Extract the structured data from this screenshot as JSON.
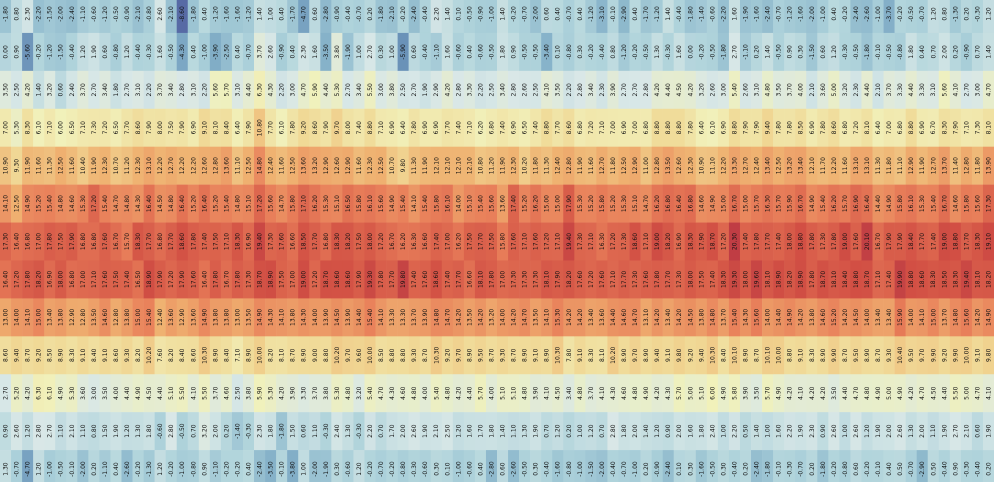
{
  "chart_data": {
    "type": "heatmap",
    "title": "",
    "xlabel": "",
    "ylabel": "",
    "orientation": "columns are series, rows are month-like bands (values printed vertically in each cell)",
    "colormap": "RdYlBu_r",
    "vmin": -10,
    "vmax": 22,
    "row_profile": [
      -1.0,
      0.5,
      3.0,
      7.5,
      12.0,
      15.5,
      17.5,
      17.0,
      13.5,
      9.0,
      4.5,
      0.5,
      -1.5
    ],
    "columns": [
      [
        -1.8,
        0.0,
        3.5,
        7.0,
        10.9,
        14.1,
        17.3,
        16.4,
        13.0,
        8.6,
        2.7,
        0.9,
        1.3
      ],
      [
        0.8,
        0.9,
        2.5,
        5.3,
        9.3,
        12.5,
        16.4,
        17.2,
        14.0,
        9.4,
        5.2,
        2.6,
        -0.7
      ],
      [
        2.3,
        -5.6,
        4.2,
        8.3,
        11.9,
        14.9,
        16.8,
        17.8,
        14.1,
        8.7,
        4.2,
        1.2,
        -4.7
      ],
      [
        -2.2,
        -0.2,
        1.4,
        6.1,
        11.6,
        15.2,
        17.0,
        18.2,
        15.0,
        9.2,
        6.3,
        2.8,
        1.2
      ],
      [
        -1.5,
        -1.2,
        3.2,
        7.1,
        11.3,
        15.4,
        17.8,
        16.9,
        13.4,
        8.5,
        6.1,
        2.7,
        -1.0
      ],
      [
        -2.0,
        -1.5,
        0.6,
        6.0,
        12.5,
        14.8,
        17.5,
        18.0,
        13.8,
        8.9,
        4.9,
        1.1,
        -0.5
      ],
      [
        -2.4,
        -0.4,
        2.4,
        6.5,
        11.6,
        14.6,
        17.9,
        16.8,
        12.9,
        8.3,
        5.3,
        2.1,
        -0.1
      ],
      [
        -1.1,
        1.2,
        3.7,
        7.1,
        10.4,
        15.3,
        16.8,
        17.0,
        12.8,
        9.1,
        3.6,
        1.1,
        -2.0
      ],
      [
        -0.6,
        1.9,
        2.7,
        7.3,
        11.9,
        17.2,
        16.8,
        17.1,
        13.5,
        8.4,
        3.0,
        0.8,
        0.2
      ],
      [
        -1.2,
        0.6,
        3.4,
        7.2,
        12.3,
        15.4,
        17.6,
        17.6,
        14.6,
        9.1,
        3.5,
        1.5,
        -1.1
      ],
      [
        -0.5,
        -0.8,
        1.8,
        6.5,
        10.7,
        14.7,
        16.7,
        17.5,
        12.8,
        8.6,
        4.0,
        1.9,
        0.4
      ],
      [
        -0.9,
        1.2,
        2.7,
        7.7,
        11.2,
        14.8,
        15.7,
        17.4,
        13.8,
        9.3,
        4.4,
        1.2,
        -2.6
      ],
      [
        -2.1,
        -0.4,
        3.1,
        8.6,
        12.3,
        14.3,
        18.3,
        16.5,
        15.0,
        8.2,
        4.9,
        1.3,
        -0.2
      ],
      [
        -0.8,
        -0.3,
        2.2,
        7.9,
        13.1,
        16.4,
        17.7,
        18.9,
        15.4,
        10.2,
        4.5,
        1.8,
        -1.3
      ],
      [
        2.6,
        1.6,
        3.7,
        8.0,
        12.2,
        14.5,
        16.8,
        17.9,
        12.4,
        7.6,
        4.4,
        -0.6,
        1.2
      ],
      [
        -2.1,
        -0.5,
        3.4,
        7.5,
        12.7,
        14.8,
        17.7,
        17.2,
        13.6,
        8.2,
        5.1,
        2.8,
        -0.2
      ],
      [
        -8.6,
        -4.3,
        2.8,
        7.9,
        12.2,
        16.4,
        18.6,
        17.9,
        12.9,
        8.4,
        5.5,
        -0.5,
        -1.0
      ],
      [
        -1.8,
        0.4,
        3.1,
        6.9,
        12.2,
        15.2,
        17.8,
        17.6,
        13.6,
        8.6,
        4.1,
        0.7,
        -0.8
      ],
      [
        0.4,
        -1.0,
        2.2,
        9.1,
        12.6,
        16.4,
        17.4,
        16.4,
        14.9,
        10.3,
        5.5,
        3.2,
        0.9
      ],
      [
        -1.2,
        -3.9,
        5.6,
        8.1,
        12.8,
        15.2,
        17.5,
        17.8,
        13.8,
        8.9,
        3.7,
        2.0,
        -1.1
      ],
      [
        -1.6,
        -2.5,
        5.7,
        8.4,
        13.6,
        15.4,
        17.1,
        16.7,
        13.8,
        8.4,
        4.6,
        0.2,
        -0.2
      ],
      [
        -1.6,
        0.4,
        3.1,
        6.4,
        11.1,
        14.8,
        18.3,
        17.8,
        13.0,
        7.1,
        2.5,
        -1.4,
        -0.2
      ],
      [
        -1.2,
        -0.7,
        4.4,
        7.9,
        12.5,
        15.1,
        16.9,
        17.3,
        13.5,
        8.9,
        3.8,
        -0.3,
        0.4
      ],
      [
        1.4,
        3.7,
        6.3,
        10.8,
        14.8,
        17.2,
        19.4,
        18.7,
        14.9,
        10.0,
        5.9,
        2.3,
        -2.4
      ],
      [
        1.0,
        2.6,
        4.3,
        7.7,
        12.4,
        15.6,
        17.3,
        18.9,
        14.3,
        8.2,
        5.3,
        1.8,
        -3.5
      ],
      [
        0.4,
        -0.9,
        2.2,
        6.1,
        11.6,
        14.7,
        17.6,
        17.5,
        14.1,
        8.1,
        4.2,
        -1.8,
        -0.1
      ],
      [
        -1.7,
        0.4,
        3.0,
        7.8,
        12.5,
        15.8,
        16.6,
        17.0,
        13.8,
        8.7,
        3.9,
        1.5,
        -3.8
      ],
      [
        -4.7,
        2.3,
        4.7,
        9.2,
        13.6,
        17.1,
        18.5,
        19.0,
        14.3,
        8.9,
        3.3,
        0.6,
        1.0
      ],
      [
        0.6,
        1.6,
        5.9,
        8.6,
        13.2,
        16.2,
        17.7,
        17.2,
        14.0,
        9.0,
        3.7,
        1.1,
        -2.0
      ],
      [
        -2.8,
        -3.5,
        4.4,
        7.9,
        12.9,
        15.3,
        16.8,
        18.7,
        13.9,
        8.8,
        3.8,
        -0.3,
        -1.9
      ],
      [
        -0.9,
        3.8,
        5.3,
        9.7,
        12.6,
        15.1,
        18.3,
        18.6,
        14.5,
        10.2,
        5.3,
        2.4,
        0.3
      ],
      [
        -0.4,
        -1.9,
        2.7,
        8.0,
        12.9,
        16.5,
        18.2,
        18.6,
        13.9,
        9.7,
        4.8,
        1.3,
        -0.6
      ],
      [
        -0.7,
        1.0,
        3.4,
        7.4,
        11.6,
        15.8,
        17.5,
        17.9,
        14.4,
        9.6,
        3.2,
        -0.3,
        1.2
      ],
      [
        0.2,
        2.7,
        5.5,
        8.8,
        12.3,
        16.1,
        18.0,
        19.3,
        15.4,
        10.0,
        5.4,
        2.2,
        -0.2
      ],
      [
        -1.8,
        0.3,
        3.0,
        7.1,
        12.5,
        15.6,
        17.2,
        17.8,
        14.1,
        8.5,
        4.7,
        0.7,
        -0.7
      ],
      [
        -2.1,
        1.0,
        3.8,
        6.9,
        10.7,
        14.9,
        16.7,
        17.7,
        13.3,
        8.8,
        4.3,
        1.7,
        -0.2
      ],
      [
        -0.2,
        -5.9,
        2.5,
        6.4,
        9.8,
        15.4,
        16.2,
        19.8,
        13.3,
        8.8,
        4.6,
        2.0,
        -0.8
      ],
      [
        -2.4,
        0.6,
        2.7,
        7.8,
        11.3,
        14.1,
        16.3,
        17.4,
        13.7,
        9.3,
        4.8,
        2.6,
        -0.3
      ],
      [
        -0.4,
        -0.4,
        1.9,
        6.9,
        11.9,
        15.4,
        16.6,
        17.6,
        13.9,
        8.7,
        4.0,
        1.9,
        -0.6
      ],
      [
        2.2,
        -1.1,
        2.9,
        6.9,
        12.1,
        15.8,
        17.4,
        18.6,
        14.8,
        10.3,
        5.4,
        2.1,
        0.3
      ],
      [
        1.4,
        1.6,
        4.2,
        7.7,
        12.1,
        16.1,
        17.0,
        17.4,
        14.7,
        9.2,
        4.8,
        2.5,
        0.1
      ],
      [
        0.1,
        -0.6,
        2.8,
        7.4,
        12.1,
        14.0,
        16.2,
        17.7,
        14.2,
        9.7,
        4.2,
        1.2,
        -1.0
      ],
      [
        -0.5,
        0.4,
        3.3,
        7.1,
        12.1,
        15.1,
        17.5,
        16.6,
        13.5,
        8.9,
        4.4,
        1.6,
        -0.6
      ],
      [
        -0.9,
        -0.6,
        2.2,
        6.2,
        10.8,
        15.4,
        17.7,
        18.1,
        14.2,
        9.5,
        5.7,
        1.7,
        0.4
      ],
      [
        -1.0,
        -0.5,
        2.5,
        6.8,
        11.2,
        15.6,
        17.5,
        17.8,
        13.2,
        8.7,
        4.0,
        1.8,
        -2.8
      ],
      [
        1.4,
        1.8,
        3.4,
        7.4,
        11.9,
        13.6,
        15.8,
        17.0,
        14.0,
        9.3,
        5.1,
        1.4,
        0.6
      ],
      [
        -0.2,
        0.9,
        2.8,
        6.9,
        12.3,
        17.4,
        17.6,
        17.3,
        14.2,
        8.7,
        5.1,
        1.1,
        -2.6
      ],
      [
        -0.7,
        -0.5,
        2.6,
        6.5,
        10.2,
        15.2,
        17.1,
        17.3,
        14.7,
        8.9,
        4.8,
        1.3,
        -0.5
      ],
      [
        -2.0,
        -0.5,
        2.5,
        7.4,
        11.8,
        16.2,
        17.6,
        17.3,
        13.5,
        9.1,
        3.9,
        1.9,
        0.3
      ],
      [
        0.6,
        -3.4,
        4.1,
        8.8,
        11.3,
        15.0,
        17.2,
        18.1,
        14.1,
        8.9,
        4.1,
        0.7,
        -0.4
      ],
      [
        0.4,
        0.1,
        3.5,
        7.7,
        12.4,
        15.0,
        17.1,
        17.9,
        15.3,
        10.3,
        4.5,
        1.2,
        -1.6
      ],
      [
        -0.7,
        -0.8,
        2.2,
        8.6,
        12.8,
        17.9,
        19.4,
        18.2,
        14.2,
        7.8,
        3.4,
        0.2,
        -0.8
      ],
      [
        0.4,
        0.3,
        2.8,
        6.8,
        11.9,
        15.3,
        17.3,
        17.6,
        14.2,
        9.1,
        4.8,
        1.0,
        -1.0
      ],
      [
        -1.2,
        -0.2,
        3.4,
        7.2,
        11.6,
        15.2,
        17.1,
        17.2,
        13.4,
        8.3,
        3.7,
        1.2,
        -1.5
      ],
      [
        -3.1,
        -0.4,
        2.3,
        7.1,
        12.7,
        15.8,
        16.3,
        17.6,
        13.6,
        8.1,
        4.1,
        0.7,
        -2.0
      ],
      [
        -0.1,
        0.8,
        3.9,
        7.0,
        11.8,
        15.2,
        17.2,
        17.1,
        14.4,
        10.2,
        4.3,
        2.8,
        -0.4
      ],
      [
        -2.9,
        -1.2,
        2.7,
        6.9,
        12.5,
        15.3,
        17.3,
        17.7,
        14.6,
        8.9,
        4.6,
        1.8,
        -0.7
      ],
      [
        0.4,
        -0.2,
        2.7,
        7.0,
        12.9,
        15.1,
        18.6,
        17.3,
        14.7,
        9.7,
        4.8,
        2.0,
        -1.0
      ],
      [
        -1.7,
        -0.5,
        2.8,
        6.8,
        11.0,
        14.7,
        17.1,
        17.6,
        13.1,
        8.9,
        4.9,
        1.4,
        0.2
      ],
      [
        -1.2,
        1.3,
        4.2,
        8.8,
        12.8,
        16.2,
        19.0,
        17.8,
        14.2,
        9.4,
        4.2,
        1.2,
        -0.9
      ],
      [
        1.4,
        -0.3,
        4.4,
        8.8,
        13.5,
        16.8,
        18.2,
        17.7,
        13.4,
        9.1,
        4.3,
        0.9,
        -2.4
      ],
      [
        -0.4,
        1.6,
        4.5,
        8.8,
        12.6,
        16.4,
        16.9,
        17.3,
        14.2,
        9.8,
        5.7,
        2.0,
        0.1
      ],
      [
        -1.8,
        0.0,
        4.2,
        7.8,
        12.3,
        16.8,
        18.3,
        18.0,
        14.5,
        9.2,
        5.0,
        1.6,
        0.3
      ],
      [
        -1.4,
        -0.2,
        3.2,
        6.4,
        10.9,
        14.6,
        17.9,
        17.5,
        13.8,
        9.4,
        5.1,
        1.8,
        -1.6
      ],
      [
        -0.6,
        -0.5,
        2.6,
        6.1,
        11.1,
        14.9,
        18.7,
        17.4,
        14.8,
        10.3,
        6.0,
        2.4,
        -0.5
      ],
      [
        -2.2,
        -1.8,
        3.0,
        6.9,
        12.2,
        15.0,
        17.2,
        18.3,
        13.7,
        8.4,
        4.9,
        1.0,
        0.3
      ],
      [
        1.6,
        2.7,
        5.4,
        8.8,
        13.3,
        16.7,
        20.3,
        19.3,
        15.4,
        10.1,
        5.8,
        2.2,
        -0.4
      ],
      [
        -1.9,
        -1.1,
        2.6,
        7.9,
        12.7,
        15.0,
        17.4,
        18.0,
        14.3,
        8.9,
        3.9,
        0.5,
        0.2
      ],
      [
        -1.6,
        0.2,
        3.1,
        7.9,
        12.4,
        15.7,
        17.8,
        19.6,
        15.6,
        8.7,
        3.5,
        1.4,
        -2.4
      ],
      [
        -2.4,
        1.4,
        4.8,
        9.4,
        13.4,
        16.3,
        17.7,
        18.1,
        14.0,
        10.1,
        5.7,
        1.0,
        -1.8
      ],
      [
        -0.7,
        -0.5,
        3.5,
        7.8,
        12.5,
        15.7,
        17.4,
        18.9,
        14.4,
        10.0,
        4.9,
        1.6,
        -0.1
      ],
      [
        -1.2,
        0.9,
        3.7,
        7.8,
        13.2,
        15.9,
        18.0,
        18.2,
        14.9,
        8.8,
        4.2,
        2.2,
        -0.3
      ],
      [
        -1.6,
        0.3,
        4.0,
        8.5,
        13.4,
        16.7,
        18.8,
        18.9,
        14.2,
        9.1,
        4.1,
        1.9,
        -0.7
      ],
      [
        -2.0,
        -1.5,
        2.1,
        6.9,
        12.1,
        14.9,
        17.8,
        17.8,
        13.8,
        8.3,
        4.2,
        2.3,
        0.2
      ],
      [
        -1.0,
        0.6,
        3.6,
        7.8,
        11.7,
        15.4,
        17.3,
        18.7,
        14.6,
        8.9,
        4.2,
        0.9,
        -1.8
      ],
      [
        0.4,
        1.2,
        5.0,
        8.6,
        12.2,
        16.2,
        17.8,
        18.1,
        15.2,
        9.9,
        3.5,
        2.6,
        -0.2
      ],
      [
        -0.2,
        -0.3,
        3.2,
        6.8,
        11.6,
        15.7,
        19.0,
        18.4,
        14.2,
        8.7,
        4.4,
        1.0,
        -0.8
      ],
      [
        -2.4,
        -0.5,
        2.3,
        7.2,
        13.1,
        16.9,
        17.6,
        18.8,
        14.5,
        9.5,
        4.7,
        2.6,
        0.6
      ],
      [
        -2.6,
        -1.8,
        4.4,
        8.1,
        13.1,
        16.4,
        20.1,
        18.7,
        14.0,
        8.9,
        4.8,
        1.2,
        -0.2
      ],
      [
        -1.0,
        -0.1,
        2.1,
        6.4,
        11.3,
        14.4,
        16.7,
        17.1,
        13.4,
        8.7,
        4.9,
        1.9,
        -0.1
      ],
      [
        -3.7,
        -0.5,
        3.7,
        7.0,
        11.8,
        14.9,
        17.9,
        17.4,
        13.4,
        9.3,
        5.0,
        2.0,
        0.4
      ],
      [
        -0.2,
        -0.8,
        3.3,
        6.8,
        11.1,
        15.8,
        17.9,
        19.9,
        15.9,
        10.4,
        4.9,
        2.6,
        0.5
      ],
      [
        -0.5,
        1.8,
        4.4,
        8.8,
        12.9,
        16.1,
        18.4,
        18.8,
        14.0,
        9.5,
        4.2,
        1.3,
        -0.7
      ],
      [
        -0.7,
        0.4,
        3.3,
        6.9,
        11.9,
        15.3,
        17.7,
        18.6,
        14.1,
        9.7,
        4.7,
        2.0,
        -2.9
      ],
      [
        1.2,
        0.7,
        3.1,
        6.7,
        12.7,
        15.4,
        17.4,
        18.3,
        15.0,
        9.9,
        4.5,
        1.1,
        0.5
      ],
      [
        0.8,
        2.0,
        5.6,
        8.3,
        13.7,
        16.7,
        19.0,
        18.5,
        13.7,
        9.2,
        4.4,
        1.9,
        -0.4
      ],
      [
        -1.3,
        0.2,
        4.1,
        7.9,
        11.4,
        14.6,
        18.8,
        18.3,
        14.8,
        9.9,
        5.5,
        2.7,
        0.9
      ],
      [
        0.2,
        -0.9,
        2.7,
        7.1,
        12.8,
        15.8,
        17.7,
        19.4,
        15.6,
        10.0,
        5.0,
        2.1,
        -0.3
      ],
      [
        -0.3,
        0.7,
        3.0,
        7.3,
        11.8,
        15.6,
        18.3,
        18.1,
        14.2,
        9.1,
        4.7,
        0.6,
        -0.4
      ],
      [
        1.2,
        1.4,
        4.7,
        8.1,
        13.9,
        17.3,
        19.1,
        18.2,
        14.9,
        9.8,
        4.1,
        1.9,
        0.2
      ]
    ]
  }
}
